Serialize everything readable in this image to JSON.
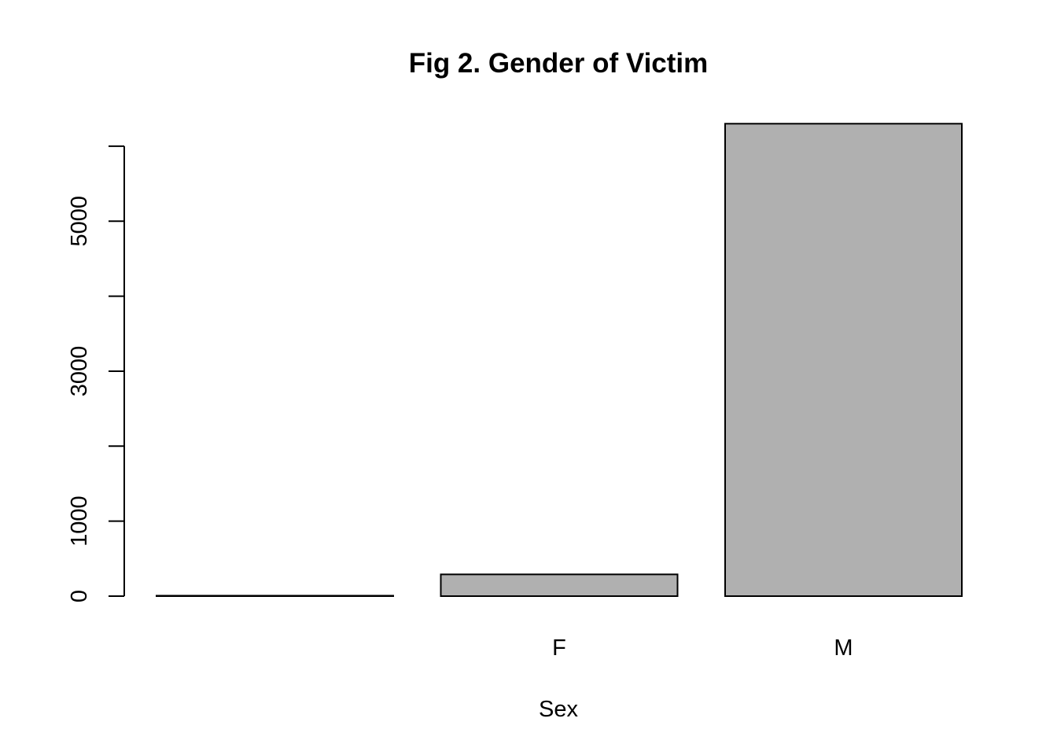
{
  "chart_data": {
    "type": "bar",
    "title": "Fig 2. Gender of Victim",
    "xlabel": "Sex",
    "ylabel": "",
    "categories": [
      "",
      "F",
      "M"
    ],
    "values": [
      6,
      290,
      6300
    ],
    "ylim": [
      0,
      6300
    ],
    "yticks": [
      0,
      1000,
      2000,
      3000,
      4000,
      5000,
      6000
    ],
    "ytick_labels": [
      "0",
      "1000",
      "",
      "3000",
      "",
      "5000",
      ""
    ],
    "bar_fill": "#b0b0b0",
    "bar_stroke": "#000000",
    "grid": false,
    "legend": "none"
  }
}
